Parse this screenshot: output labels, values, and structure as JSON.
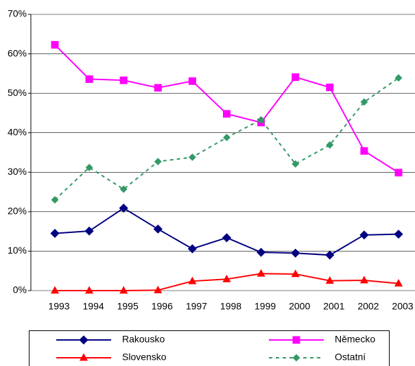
{
  "chart_data": {
    "type": "line",
    "categories": [
      "1993",
      "1994",
      "1995",
      "1996",
      "1997",
      "1998",
      "1999",
      "2000",
      "2001",
      "2002",
      "2003"
    ],
    "series": [
      {
        "name": "Rakousko",
        "color": "#000080",
        "marker": "diamond",
        "dash": false,
        "values": [
          14.5,
          15.1,
          20.9,
          15.6,
          10.6,
          13.4,
          9.7,
          9.5,
          9.0,
          14.1,
          14.3
        ]
      },
      {
        "name": "Německo",
        "color": "#ff00ff",
        "marker": "square",
        "dash": false,
        "values": [
          62.3,
          53.6,
          53.3,
          51.4,
          53.1,
          44.8,
          42.6,
          54.1,
          51.5,
          35.4,
          29.9
        ]
      },
      {
        "name": "Slovensko",
        "color": "#ff0000",
        "marker": "triangle",
        "dash": false,
        "values": [
          0,
          0,
          0,
          0.1,
          2.4,
          2.9,
          4.3,
          4.2,
          2.5,
          2.6,
          1.8
        ]
      },
      {
        "name": "Ostatní",
        "color": "#339966",
        "marker": "diamond",
        "dash": true,
        "values": [
          23.0,
          31.2,
          25.7,
          32.7,
          33.8,
          38.8,
          43.3,
          32.1,
          36.9,
          47.8,
          53.9
        ]
      }
    ],
    "ylim": [
      0,
      70
    ],
    "yticks": [
      {
        "value": 0,
        "label": "0%"
      },
      {
        "value": 10,
        "label": "10%"
      },
      {
        "value": 20,
        "label": "20%"
      },
      {
        "value": 30,
        "label": "30%"
      },
      {
        "value": 40,
        "label": "40%"
      },
      {
        "value": 50,
        "label": "50%"
      },
      {
        "value": 60,
        "label": "60%"
      },
      {
        "value": 70,
        "label": "70%"
      }
    ],
    "grid": true,
    "legend": "bottom"
  }
}
